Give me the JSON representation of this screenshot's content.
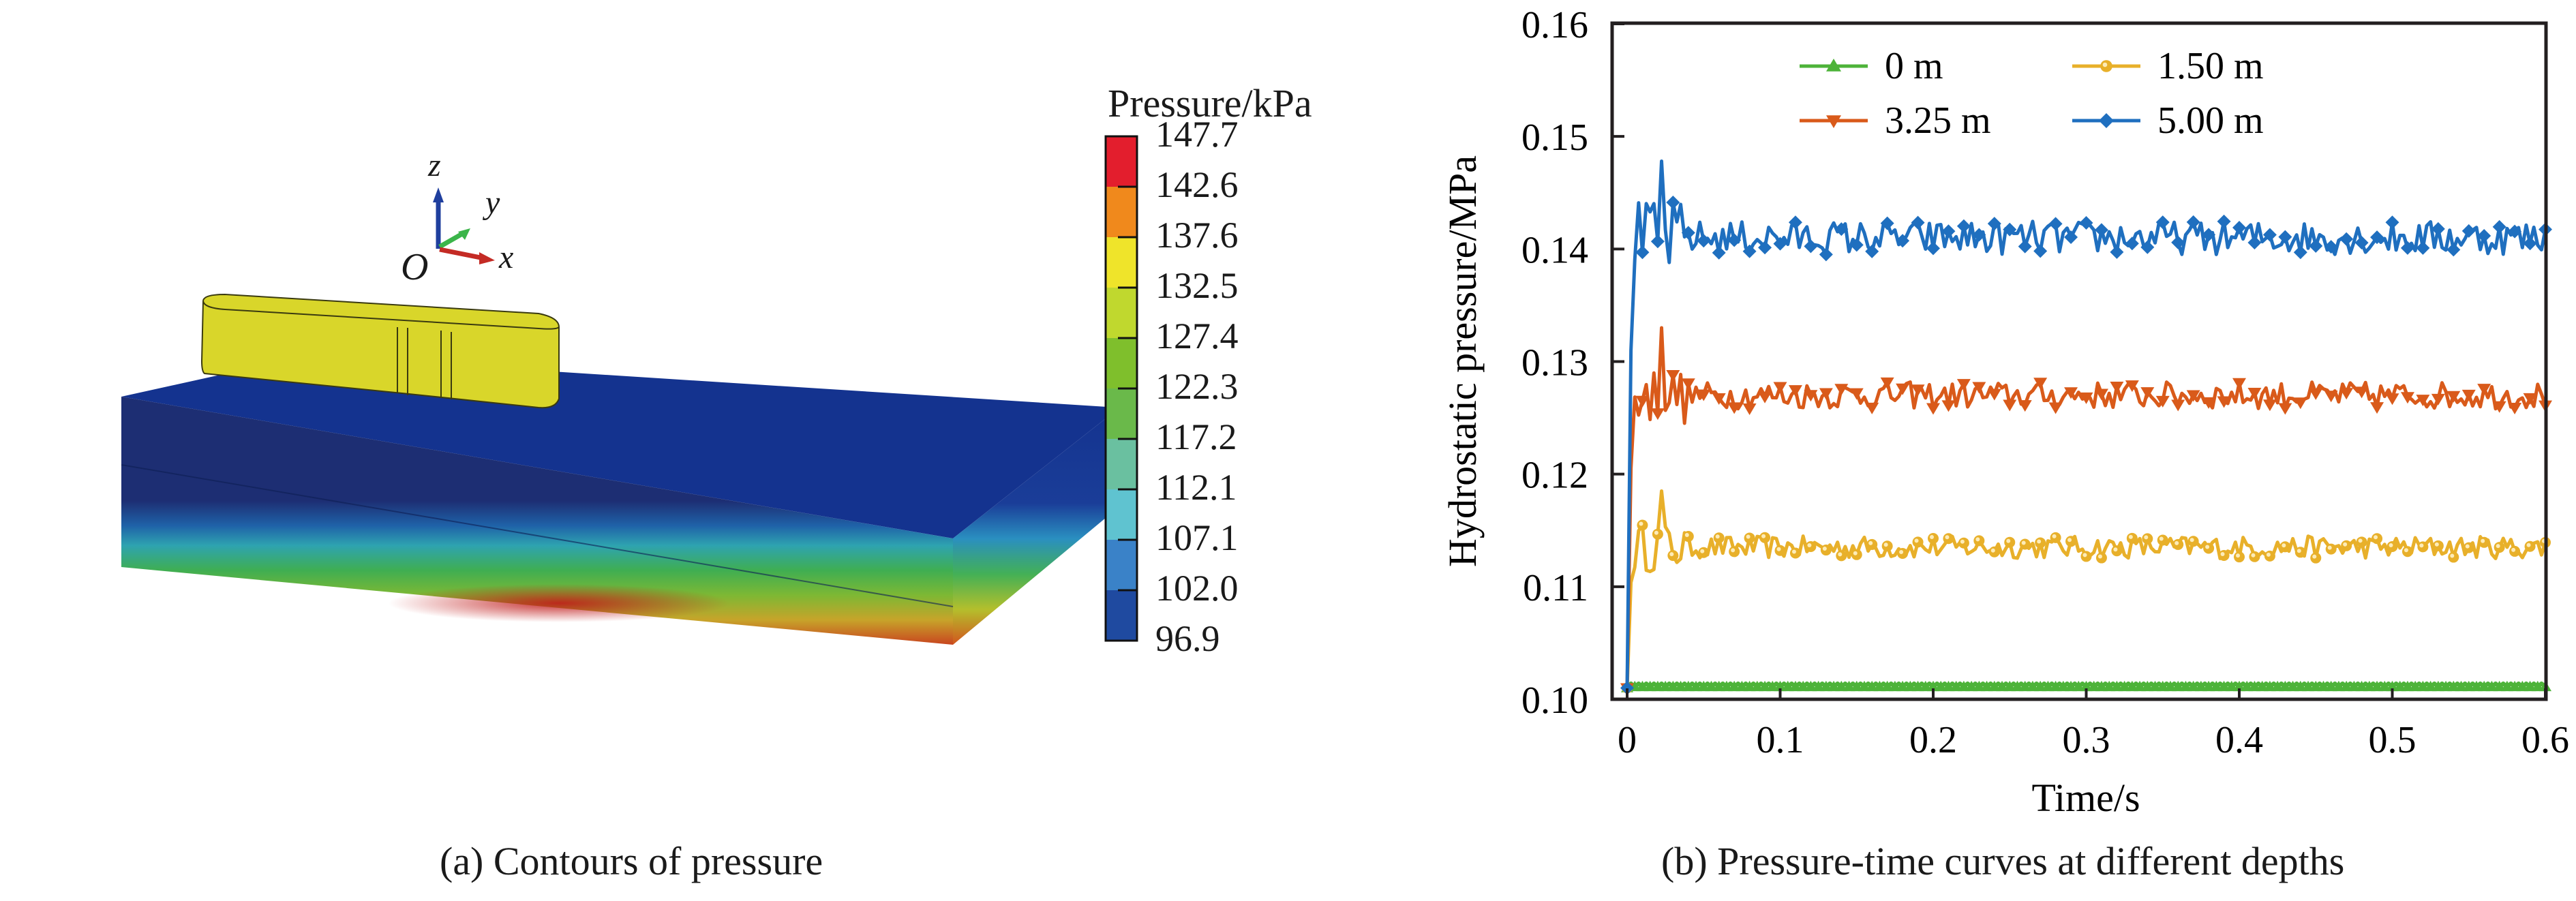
{
  "panel_a": {
    "caption": "(a) Contours of pressure",
    "colorbar": {
      "title": "Pressure/kPa",
      "labels": [
        "147.7",
        "142.6",
        "137.6",
        "132.5",
        "127.4",
        "122.3",
        "117.2",
        "112.1",
        "107.1",
        "102.0",
        "96.9"
      ],
      "colors": [
        "#e31e2d",
        "#f0891c",
        "#efe42a",
        "#c0d82e",
        "#7fbf2c",
        "#6ab94a",
        "#6ac0a0",
        "#5fc3d0",
        "#3a82c8",
        "#1f4aa0"
      ]
    },
    "axes_triad": {
      "x": "x",
      "y": "y",
      "z": "z",
      "origin": "O"
    },
    "colors": {
      "structure": "#d9d62a",
      "top_face": "#14338f",
      "deep_blue": "#1d2e73"
    }
  },
  "panel_b": {
    "caption": "(b) Pressure-time curves at different depths"
  },
  "chart_data": {
    "type": "line",
    "title": "",
    "xlabel": "Time/s",
    "ylabel": "Hydrostatic pressure/MPa",
    "xlim": [
      0,
      0.6
    ],
    "ylim": [
      0.1,
      0.16
    ],
    "xticks": [
      "0",
      "0.1",
      "0.2",
      "0.3",
      "0.4",
      "0.5",
      "0.6"
    ],
    "yticks": [
      "0.10",
      "0.11",
      "0.12",
      "0.13",
      "0.14",
      "0.15",
      "0.16"
    ],
    "grid": false,
    "legend_position": "top-right",
    "series": [
      {
        "name": "0 m",
        "color": "#4db339",
        "marker": "triangle-up",
        "mean": 0.1012,
        "peak": 0.1012,
        "noise": 0.0002,
        "start": 0.101
      },
      {
        "name": "1.50 m",
        "color": "#e8b02a",
        "marker": "circle",
        "mean": 0.1135,
        "peak": 0.1185,
        "noise": 0.001,
        "start": 0.101
      },
      {
        "name": "3.25 m",
        "color": "#d95a1a",
        "marker": "triangle-down",
        "mean": 0.127,
        "peak": 0.133,
        "noise": 0.0012,
        "start": 0.101
      },
      {
        "name": "5.00 m",
        "color": "#1f6fbf",
        "marker": "diamond",
        "mean": 0.141,
        "peak": 0.1478,
        "noise": 0.0015,
        "start": 0.101
      }
    ],
    "sample_interval": 0.0025
  }
}
